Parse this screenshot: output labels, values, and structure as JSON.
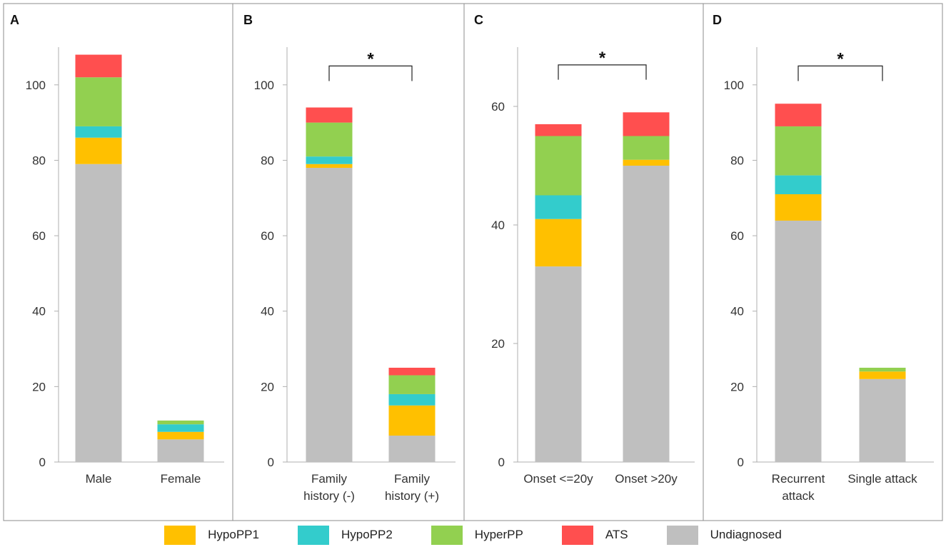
{
  "colors": {
    "HypoPP1": "#FFC000",
    "HypoPP2": "#33CCCC",
    "HyperPP": "#92D050",
    "ATS": "#FF4F4F",
    "Undiagnosed": "#BFBFBF",
    "frame": "#8C8C8C",
    "axis": "#AFAFAF"
  },
  "legend": [
    {
      "key": "HypoPP1",
      "label": "HypoPP1"
    },
    {
      "key": "HypoPP2",
      "label": "HypoPP2"
    },
    {
      "key": "HyperPP",
      "label": "HyperPP"
    },
    {
      "key": "ATS",
      "label": "ATS"
    },
    {
      "key": "Undiagnosed",
      "label": "Undiagnosed"
    }
  ],
  "chart_data": [
    {
      "type": "bar",
      "stacked": true,
      "panel_label": "A",
      "ylim": [
        0,
        110
      ],
      "yticks": [
        "0",
        "20",
        "40",
        "60",
        "80",
        "100"
      ],
      "categories": [
        [
          "Male"
        ],
        [
          "Female"
        ]
      ],
      "series": [
        {
          "name": "Undiagnosed",
          "values": [
            79,
            6
          ]
        },
        {
          "name": "HypoPP1",
          "values": [
            7,
            2
          ]
        },
        {
          "name": "HypoPP2",
          "values": [
            3,
            2
          ]
        },
        {
          "name": "HyperPP",
          "values": [
            13,
            1
          ]
        },
        {
          "name": "ATS",
          "values": [
            6,
            0
          ]
        }
      ],
      "significance": null
    },
    {
      "type": "bar",
      "stacked": true,
      "panel_label": "B",
      "ylim": [
        0,
        110
      ],
      "yticks": [
        "0",
        "20",
        "40",
        "60",
        "80",
        "100"
      ],
      "categories": [
        [
          "Family",
          "history (-)"
        ],
        [
          "Family",
          "history (+)"
        ]
      ],
      "series": [
        {
          "name": "Undiagnosed",
          "values": [
            78,
            7
          ]
        },
        {
          "name": "HypoPP1",
          "values": [
            1,
            8
          ]
        },
        {
          "name": "HypoPP2",
          "values": [
            2,
            3
          ]
        },
        {
          "name": "HyperPP",
          "values": [
            9,
            5
          ]
        },
        {
          "name": "ATS",
          "values": [
            4,
            2
          ]
        }
      ],
      "significance": {
        "label": "*",
        "level": 105,
        "drop": 101
      }
    },
    {
      "type": "bar",
      "stacked": true,
      "panel_label": "C",
      "ylim": [
        0,
        70
      ],
      "yticks": [
        "0",
        "20",
        "40",
        "60"
      ],
      "categories": [
        [
          "Onset <=20y"
        ],
        [
          "Onset >20y"
        ]
      ],
      "series": [
        {
          "name": "Undiagnosed",
          "values": [
            33,
            50
          ]
        },
        {
          "name": "HypoPP1",
          "values": [
            8,
            1
          ]
        },
        {
          "name": "HypoPP2",
          "values": [
            4,
            0
          ]
        },
        {
          "name": "HyperPP",
          "values": [
            10,
            4
          ]
        },
        {
          "name": "ATS",
          "values": [
            2,
            4
          ]
        }
      ],
      "significance": {
        "label": "*",
        "level": 67,
        "drop": 64.5
      }
    },
    {
      "type": "bar",
      "stacked": true,
      "panel_label": "D",
      "ylim": [
        0,
        110
      ],
      "yticks": [
        "0",
        "20",
        "40",
        "60",
        "80",
        "100"
      ],
      "categories": [
        [
          "Recurrent",
          "attack"
        ],
        [
          "Single attack"
        ]
      ],
      "series": [
        {
          "name": "Undiagnosed",
          "values": [
            64,
            22
          ]
        },
        {
          "name": "HypoPP1",
          "values": [
            7,
            2
          ]
        },
        {
          "name": "HypoPP2",
          "values": [
            5,
            0
          ]
        },
        {
          "name": "HyperPP",
          "values": [
            13,
            1
          ]
        },
        {
          "name": "ATS",
          "values": [
            6,
            0
          ]
        }
      ],
      "significance": {
        "label": "*",
        "level": 105,
        "drop": 101
      }
    }
  ]
}
